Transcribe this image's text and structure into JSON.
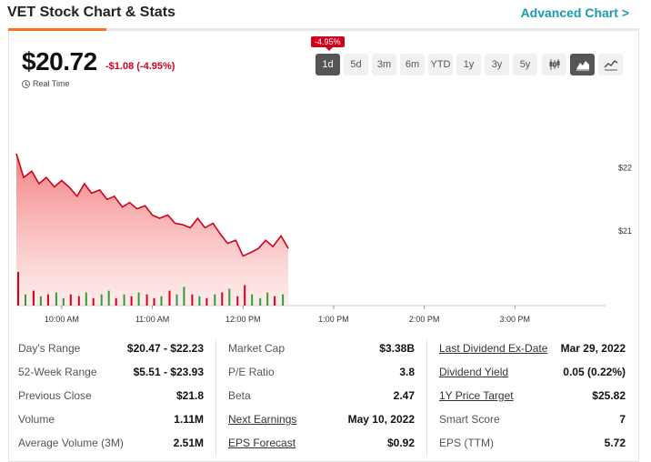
{
  "header": {
    "title": "VET Stock Chart & Stats",
    "advanced_link": "Advanced Chart >"
  },
  "quote": {
    "price": "$20.72",
    "change": "-$1.08 (-4.95%)",
    "realtime_label": "Real Time",
    "change_badge": "-4.95%"
  },
  "ranges": [
    "1d",
    "5d",
    "3m",
    "6m",
    "YTD",
    "1y",
    "3y",
    "5y"
  ],
  "active_range": "1d",
  "chart_types": [
    {
      "name": "candlestick-chart-icon",
      "active": false
    },
    {
      "name": "mountain-chart-icon",
      "active": true
    },
    {
      "name": "line-chart-icon",
      "active": false
    }
  ],
  "colors": {
    "accent": "#f47521",
    "down": "#d0021b",
    "fill": "#f48a8a",
    "volume_up": "#2e9e3a",
    "volume_down": "#d0021b",
    "link": "#1a9bb0"
  },
  "chart_data": {
    "type": "area",
    "x_ticks": [
      "10:00 AM",
      "11:00 AM",
      "12:00 PM",
      "1:00 PM",
      "2:00 PM",
      "3:00 PM"
    ],
    "y_ticks": [
      "$22",
      "$21"
    ],
    "y_tick_values": [
      22,
      21
    ],
    "ylim": [
      20.1,
      22.3
    ],
    "session_start_hour": 9.5,
    "session_end_hour": 16.0,
    "tick_hours": [
      10,
      11,
      12,
      13,
      14,
      15
    ],
    "price_series": {
      "hours": [
        9.5,
        9.58,
        9.67,
        9.75,
        9.83,
        9.92,
        10.0,
        10.08,
        10.17,
        10.25,
        10.33,
        10.42,
        10.5,
        10.58,
        10.67,
        10.75,
        10.83,
        10.92,
        11.0,
        11.08,
        11.17,
        11.25,
        11.33,
        11.42,
        11.5,
        11.58,
        11.67,
        11.75,
        11.83,
        11.92,
        12.0,
        12.08,
        12.17,
        12.25,
        12.33,
        12.42,
        12.5
      ],
      "values": [
        22.23,
        21.85,
        21.95,
        21.75,
        21.85,
        21.7,
        21.8,
        21.7,
        21.55,
        21.75,
        21.6,
        21.65,
        21.5,
        21.55,
        21.38,
        21.45,
        21.35,
        21.4,
        21.25,
        21.2,
        21.25,
        21.12,
        21.1,
        21.05,
        21.2,
        21.05,
        21.12,
        20.95,
        20.8,
        20.85,
        20.6,
        20.65,
        20.72,
        20.85,
        20.75,
        20.92,
        20.72
      ]
    },
    "volume_series": {
      "hours": [
        9.5,
        9.58,
        9.67,
        9.75,
        9.83,
        9.92,
        10.0,
        10.08,
        10.17,
        10.25,
        10.33,
        10.42,
        10.5,
        10.58,
        10.67,
        10.75,
        10.83,
        10.92,
        11.0,
        11.08,
        11.17,
        11.25,
        11.33,
        11.42,
        11.5,
        11.58,
        11.67,
        11.75,
        11.83,
        11.92,
        12.0,
        12.08,
        12.17,
        12.25,
        12.33,
        12.42
      ],
      "values": [
        0.9,
        0.3,
        0.4,
        0.25,
        0.3,
        0.35,
        0.2,
        0.3,
        0.25,
        0.35,
        0.2,
        0.3,
        0.4,
        0.2,
        0.3,
        0.25,
        0.35,
        0.3,
        0.2,
        0.25,
        0.4,
        0.3,
        0.5,
        0.3,
        0.25,
        0.2,
        0.3,
        0.35,
        0.45,
        0.25,
        0.55,
        0.3,
        0.2,
        0.35,
        0.25,
        0.3
      ],
      "up": [
        false,
        true,
        false,
        true,
        false,
        true,
        true,
        false,
        false,
        true,
        false,
        true,
        true,
        false,
        true,
        false,
        true,
        false,
        false,
        true,
        false,
        true,
        true,
        false,
        true,
        false,
        true,
        false,
        true,
        false,
        false,
        true,
        true,
        true,
        false,
        true
      ]
    }
  },
  "stats": {
    "col1": [
      {
        "label": "Day's Range",
        "value": "$20.47 - $22.23",
        "link": false
      },
      {
        "label": "52-Week Range",
        "value": "$5.51 - $23.93",
        "link": false
      },
      {
        "label": "Previous Close",
        "value": "$21.8",
        "link": false
      },
      {
        "label": "Volume",
        "value": "1.11M",
        "link": false
      },
      {
        "label": "Average Volume (3M)",
        "value": "2.51M",
        "link": false
      }
    ],
    "col2": [
      {
        "label": "Market Cap",
        "value": "$3.38B",
        "link": false
      },
      {
        "label": "P/E Ratio",
        "value": "3.8",
        "link": false
      },
      {
        "label": "Beta",
        "value": "2.47",
        "link": false
      },
      {
        "label": "Next Earnings",
        "value": "May 10, 2022",
        "link": true
      },
      {
        "label": "EPS Forecast",
        "value": "$0.92",
        "link": true
      }
    ],
    "col3": [
      {
        "label": "Last Dividend Ex-Date",
        "value": "Mar 29, 2022",
        "link": true
      },
      {
        "label": "Dividend Yield",
        "value": "0.05 (0.22%)",
        "link": true
      },
      {
        "label": "1Y Price Target",
        "value": "$25.82",
        "link": true
      },
      {
        "label": "Smart Score",
        "value": "7",
        "link": false
      },
      {
        "label": "EPS (TTM)",
        "value": "5.72",
        "link": false
      }
    ]
  }
}
